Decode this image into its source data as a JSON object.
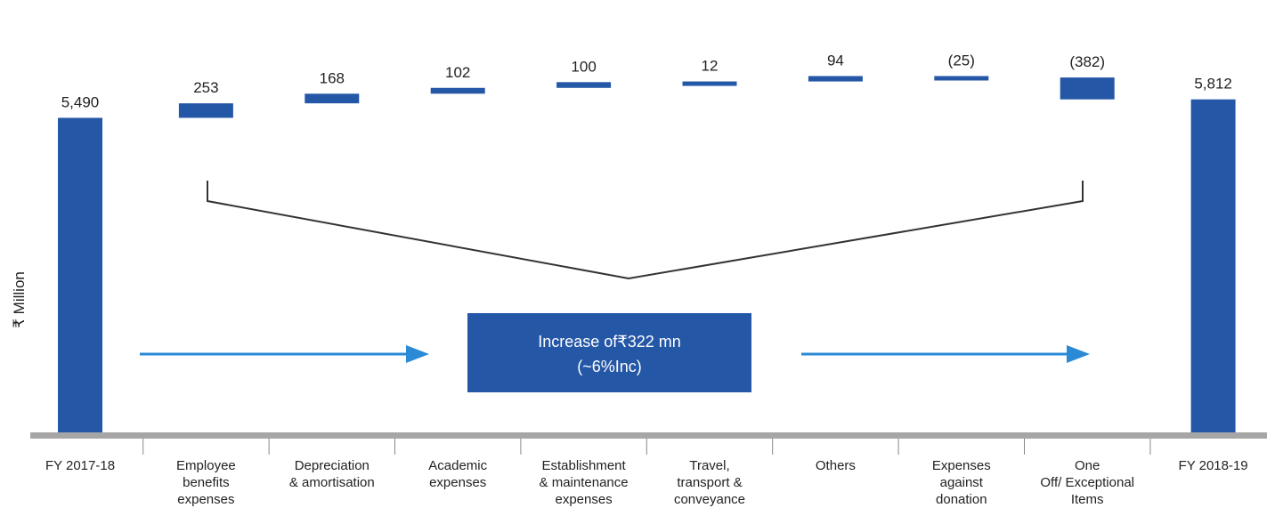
{
  "chart_data": {
    "type": "bar",
    "subtype": "waterfall",
    "ylabel": "₹ Million",
    "categories": [
      [
        "FY 2017-18"
      ],
      [
        "Employee",
        "benefits",
        "expenses"
      ],
      [
        "Depreciation",
        "& amortisation"
      ],
      [
        "Academic",
        "expenses"
      ],
      [
        "Establishment",
        "& maintenance",
        "expenses"
      ],
      [
        "Travel,",
        "transport &",
        "conveyance"
      ],
      [
        "Others"
      ],
      [
        "Expenses",
        "against",
        "donation"
      ],
      [
        "One",
        "Off/ Exceptional",
        "Items"
      ],
      [
        "FY 2018-19"
      ]
    ],
    "values": [
      5490,
      253,
      168,
      102,
      100,
      12,
      94,
      -25,
      -382,
      5812
    ],
    "data_labels": [
      "5,490",
      "253",
      "168",
      "102",
      "100",
      "12",
      "94",
      "(25)",
      "(382)",
      "5,812"
    ],
    "kinds": [
      "total",
      "delta",
      "delta",
      "delta",
      "delta",
      "delta",
      "delta",
      "delta",
      "delta",
      "total"
    ],
    "callout": {
      "line1": "Increase of₹322 mn",
      "line2": "(~6%Inc)"
    }
  },
  "colors": {
    "bar": "#2557a7",
    "axis": "#a6a6a6",
    "bracket": "#333333",
    "arrow": "#2a8ad6",
    "callout_bg": "#2557a7"
  }
}
